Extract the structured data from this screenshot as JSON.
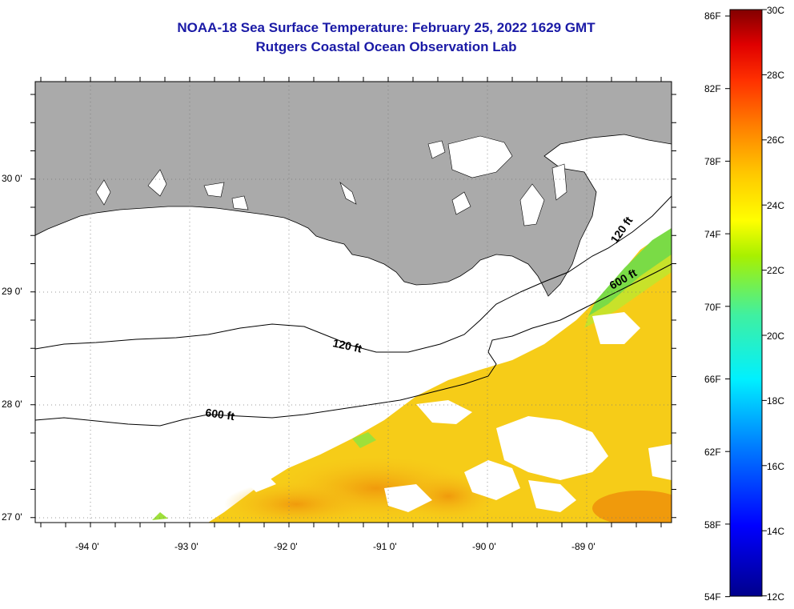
{
  "title": {
    "line1": "NOAA-18 Sea Surface Temperature:  February 25, 2022 1629 GMT",
    "line2": "Rutgers Coastal Ocean Observation Lab"
  },
  "axes": {
    "lat_labels": [
      "30 0'",
      "29 0'",
      "28 0'",
      "27 0'"
    ],
    "lon_labels": [
      "-94 0'",
      "-93 0'",
      "-92 0'",
      "-91 0'",
      "-90 0'",
      "-89 0'"
    ]
  },
  "contours": {
    "label_120_a": "120 ft",
    "label_120_b": "120 ft",
    "label_600_a": "600 ft",
    "label_600_b": "600 ft"
  },
  "colorbar": {
    "fahrenheit": [
      "86F",
      "82F",
      "78F",
      "74F",
      "70F",
      "66F",
      "62F",
      "58F",
      "54F"
    ],
    "celsius": [
      "30C",
      "28C",
      "26C",
      "24C",
      "22C",
      "20C",
      "18C",
      "16C",
      "14C",
      "12C"
    ]
  },
  "colors": {
    "title": "#1a1aa6",
    "land": "#aaaaaa",
    "no_data": "#ffffff",
    "sst_dominant": "#f6cc18",
    "sst_warm": "#f2a00e",
    "sst_cool": "#7adb46"
  }
}
